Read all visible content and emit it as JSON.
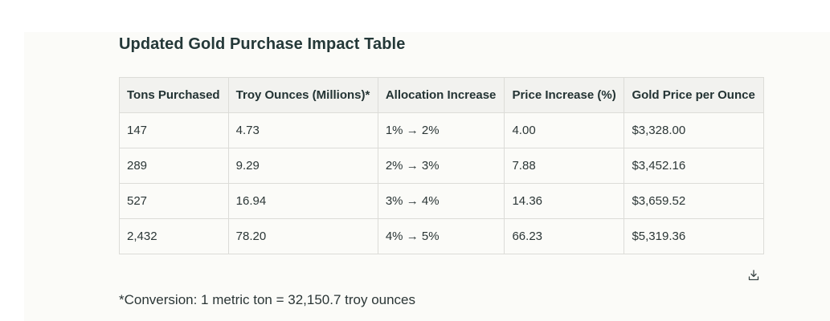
{
  "title": "Updated Gold Purchase Impact Table",
  "table": {
    "headers": [
      "Tons Purchased",
      "Troy Ounces (Millions)*",
      "Allocation Increase",
      "Price Increase (%)",
      "Gold Price per Ounce"
    ],
    "rows": [
      [
        "147",
        "4.73",
        "1% → 2%",
        "4.00",
        "$3,328.00"
      ],
      [
        "289",
        "9.29",
        "2% → 3%",
        "7.88",
        "$3,452.16"
      ],
      [
        "527",
        "16.94",
        "3% → 4%",
        "14.36",
        "$3,659.52"
      ],
      [
        "2,432",
        "78.20",
        "4% → 5%",
        "66.23",
        "$5,319.36"
      ]
    ]
  },
  "download_icon": "download-icon",
  "footnote": "*Conversion: 1 metric ton = 32,150.7 troy ounces"
}
